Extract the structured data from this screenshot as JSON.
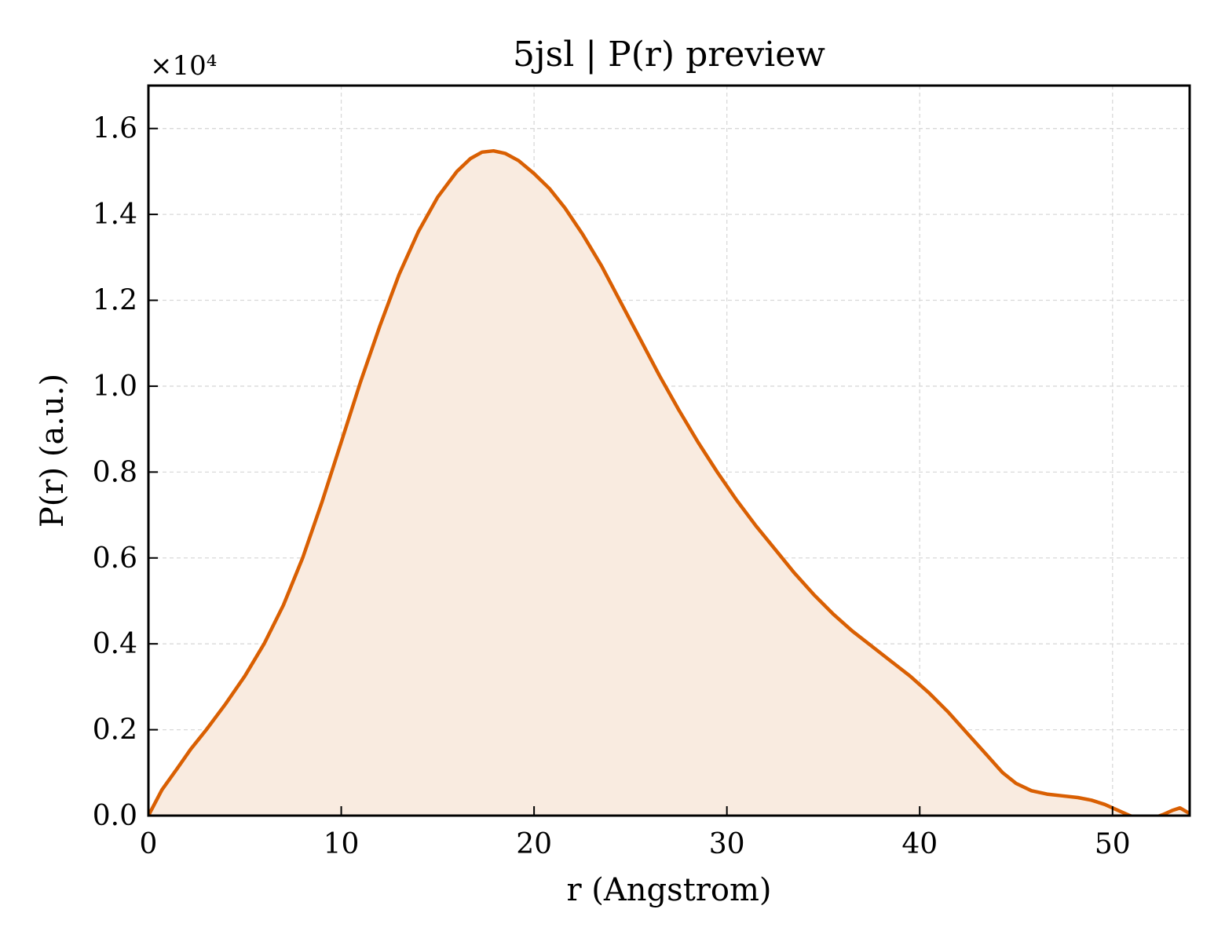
{
  "chart_data": {
    "type": "area",
    "title": "5jsl | P(r) preview",
    "xlabel": "r (Angstrom)",
    "ylabel": "P(r) (a.u.)",
    "y_multiplier_label": "×10⁴",
    "xlim": [
      0,
      54
    ],
    "ylim": [
      0,
      1.7
    ],
    "xticks": [
      0,
      10,
      20,
      30,
      40,
      50
    ],
    "xtick_labels": [
      "0",
      "10",
      "20",
      "30",
      "40",
      "50"
    ],
    "yticks": [
      0.0,
      0.2,
      0.4,
      0.6,
      0.8,
      1.0,
      1.2,
      1.4,
      1.6
    ],
    "ytick_labels": [
      "0.0",
      "0.2",
      "0.4",
      "0.6",
      "0.8",
      "1.0",
      "1.2",
      "1.4",
      "1.6"
    ],
    "grid": true,
    "colors": {
      "line": "#d95f02",
      "fill": "#f9ebe0",
      "grid": "#d9d9d9"
    },
    "series": [
      {
        "x": [
          0,
          0.7,
          1.5,
          2.2,
          3.0,
          4.0,
          5.0,
          6.0,
          7.0,
          8.0,
          9.0,
          10.0,
          11.0,
          12.0,
          13.0,
          14.0,
          15.0,
          16.0,
          16.7,
          17.3,
          17.9,
          18.5,
          19.2,
          20.0,
          20.8,
          21.6,
          22.5,
          23.5,
          24.5,
          25.5,
          26.5,
          27.5,
          28.5,
          29.5,
          30.5,
          31.5,
          32.5,
          33.5,
          34.5,
          35.5,
          36.5,
          37.5,
          38.5,
          39.5,
          40.5,
          41.5,
          42.5,
          43.5,
          44.3,
          45.0,
          45.8,
          46.6,
          47.4,
          48.2,
          48.9,
          49.6,
          50.3,
          50.9,
          51.5,
          52.1,
          52.6,
          53.1,
          53.5,
          54.0
        ],
        "y": [
          0.0,
          0.06,
          0.11,
          0.155,
          0.2,
          0.26,
          0.325,
          0.4,
          0.49,
          0.6,
          0.73,
          0.87,
          1.01,
          1.14,
          1.26,
          1.36,
          1.44,
          1.5,
          1.53,
          1.545,
          1.548,
          1.542,
          1.525,
          1.495,
          1.46,
          1.415,
          1.355,
          1.28,
          1.195,
          1.11,
          1.025,
          0.945,
          0.87,
          0.8,
          0.735,
          0.675,
          0.62,
          0.565,
          0.515,
          0.47,
          0.43,
          0.395,
          0.36,
          0.325,
          0.285,
          0.24,
          0.19,
          0.14,
          0.1,
          0.075,
          0.058,
          0.05,
          0.046,
          0.042,
          0.036,
          0.026,
          0.012,
          0.0,
          -0.01,
          -0.006,
          0.002,
          0.012,
          0.018,
          0.005
        ]
      }
    ]
  }
}
